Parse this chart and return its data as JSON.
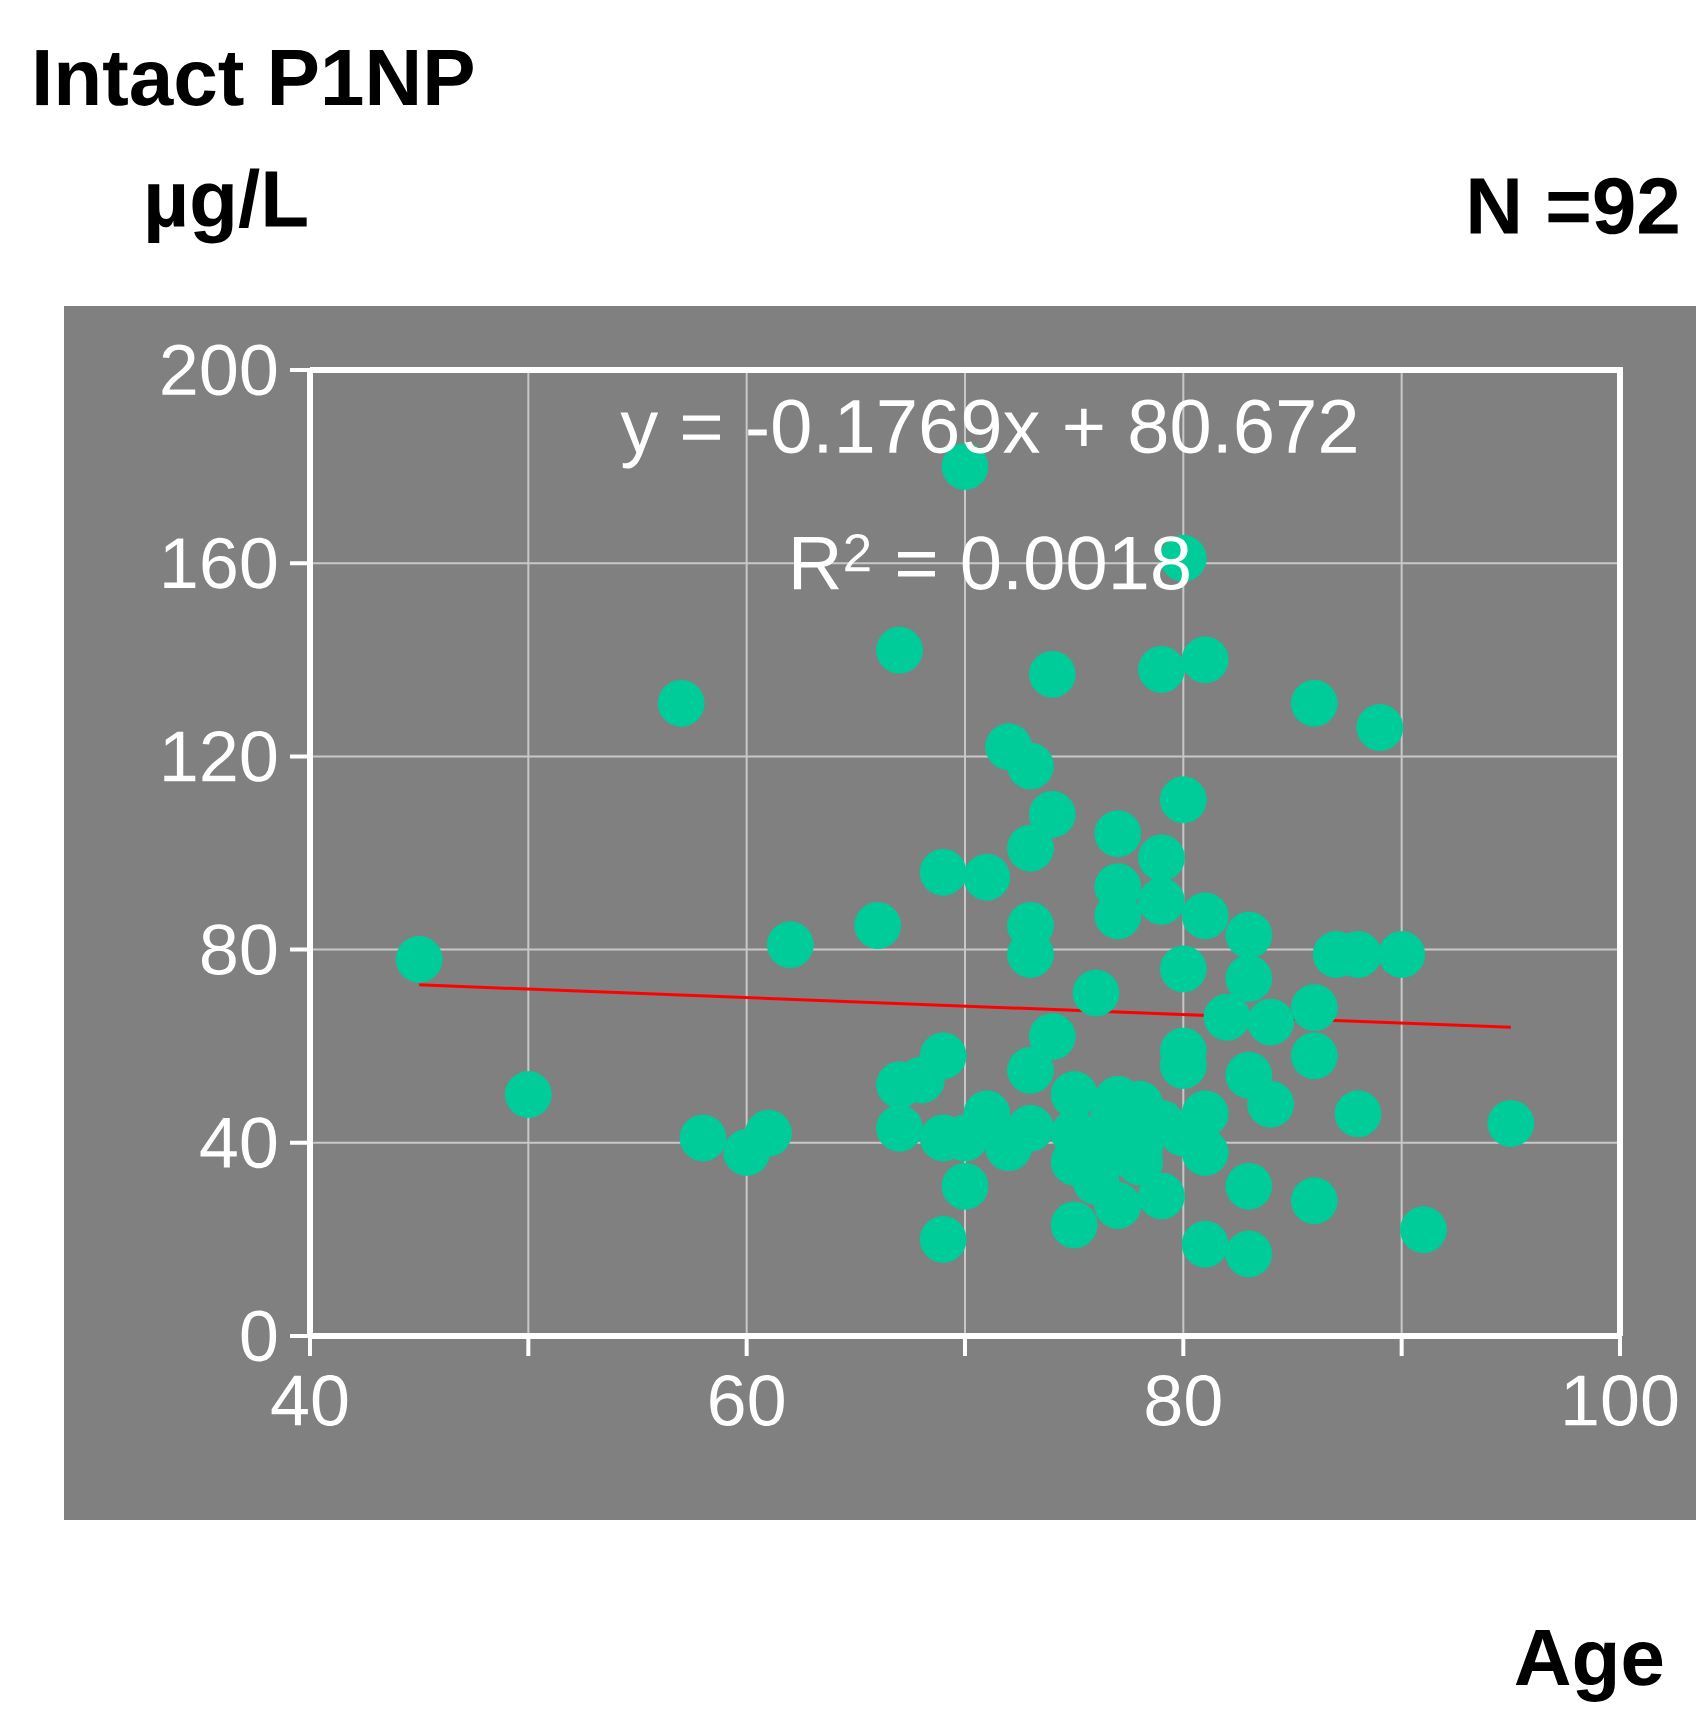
{
  "chart_data": {
    "type": "scatter",
    "title": "Intact P1NP",
    "ylabel": "µg/L",
    "annotations": [
      "N =92",
      "y = -0.1769x + 80.672",
      "R$^{2}$ = 0.0018",
      "Age"
    ],
    "xlim": [
      40,
      100
    ],
    "ylim": [
      0,
      200
    ],
    "xticks": [
      40,
      {
        "value": 50,
        "label": null
      },
      60,
      {
        "value": 70,
        "label": null
      },
      80,
      {
        "value": 90,
        "label": null
      },
      100
    ],
    "yticks": [
      0,
      40,
      80,
      120,
      160,
      200
    ],
    "grid": true,
    "series": [
      {
        "type": "scatter",
        "color": "#00cc99",
        "marker": "circle",
        "x": [
          45,
          50,
          57,
          58,
          60,
          61,
          62,
          66,
          67,
          67,
          68,
          67,
          69,
          69,
          69,
          70,
          69,
          70,
          71,
          72,
          73,
          73,
          73,
          73,
          74,
          74,
          80,
          79,
          81,
          86,
          89,
          80,
          77,
          79,
          77,
          77,
          79,
          81,
          83,
          87,
          88,
          90,
          80,
          76,
          83,
          86,
          82,
          84,
          80,
          86,
          74,
          83,
          84,
          88,
          95,
          73,
          71,
          75,
          76.8,
          78,
          80,
          81,
          72,
          75,
          76,
          78,
          79,
          81,
          83,
          86,
          75,
          81,
          83,
          91,
          77,
          73,
          70,
          76,
          77,
          79,
          80,
          75,
          77,
          78
        ],
        "values": [
          78,
          50,
          131,
          41,
          38,
          42,
          81,
          85,
          142,
          52,
          53,
          43,
          96,
          58,
          41,
          180,
          20,
          31,
          95,
          122,
          118,
          101,
          85,
          79,
          137,
          108,
          161,
          138,
          140,
          131,
          126,
          111,
          104,
          99,
          93,
          87,
          90,
          87,
          83,
          79,
          79,
          79,
          76,
          71,
          74,
          68,
          66,
          65,
          59,
          58,
          62,
          54,
          48,
          46,
          44,
          55,
          46,
          50,
          45,
          48,
          56,
          46,
          39,
          36,
          32,
          39,
          29,
          38,
          31,
          28,
          23,
          19,
          17,
          22,
          27,
          43,
          41,
          40,
          38,
          44,
          42,
          42,
          49,
          36
        ]
      },
      {
        "type": "line",
        "color": "#ff0000",
        "marker": "none",
        "x": [
          45,
          95
        ],
        "values": [
          72.7,
          63.9
        ]
      }
    ]
  }
}
